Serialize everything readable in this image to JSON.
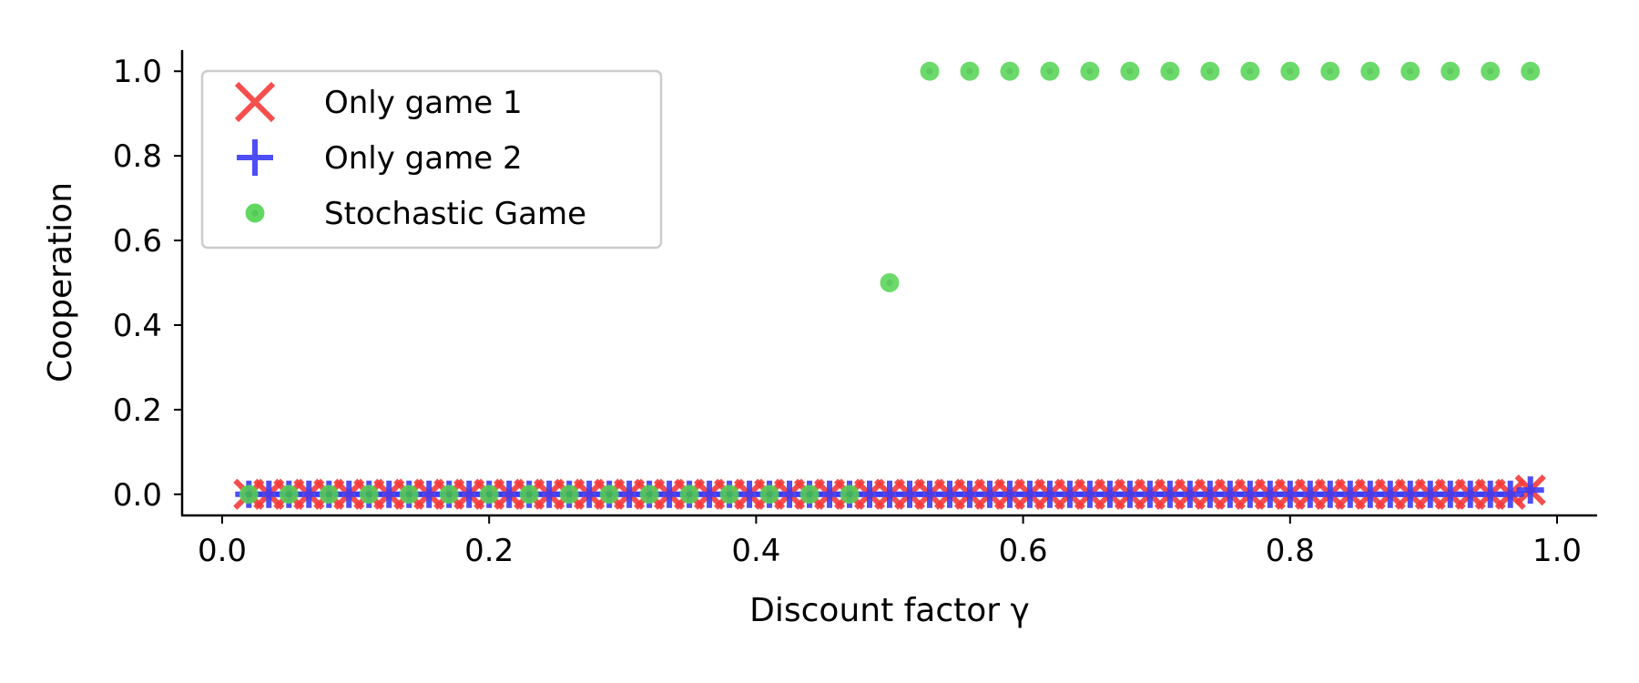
{
  "chart_data": {
    "type": "scatter",
    "xlabel": "Discount factor γ",
    "ylabel": "Cooperation",
    "xlim": [
      -0.03,
      1.03
    ],
    "ylim": [
      -0.05,
      1.05
    ],
    "xticks": [
      0.0,
      0.2,
      0.4,
      0.6,
      0.8,
      1.0
    ],
    "xtick_labels": [
      "0.0",
      "0.2",
      "0.4",
      "0.6",
      "0.8",
      "1.0"
    ],
    "yticks": [
      0.0,
      0.2,
      0.4,
      0.6,
      0.8,
      1.0
    ],
    "ytick_labels": [
      "0.0",
      "0.2",
      "0.4",
      "0.6",
      "0.8",
      "1.0"
    ],
    "grid": false,
    "legend_position": "top-left",
    "series": [
      {
        "name": "Only game 1",
        "marker": "x",
        "color": "#f53b3b",
        "x": [
          0.02,
          0.035,
          0.05,
          0.065,
          0.08,
          0.095,
          0.11,
          0.125,
          0.14,
          0.155,
          0.17,
          0.185,
          0.2,
          0.215,
          0.23,
          0.245,
          0.26,
          0.275,
          0.29,
          0.305,
          0.32,
          0.335,
          0.35,
          0.365,
          0.38,
          0.395,
          0.41,
          0.425,
          0.44,
          0.455,
          0.47,
          0.485,
          0.5,
          0.515,
          0.53,
          0.545,
          0.56,
          0.575,
          0.59,
          0.605,
          0.62,
          0.635,
          0.65,
          0.665,
          0.68,
          0.695,
          0.71,
          0.725,
          0.74,
          0.755,
          0.77,
          0.785,
          0.8,
          0.815,
          0.83,
          0.845,
          0.86,
          0.875,
          0.89,
          0.905,
          0.92,
          0.935,
          0.95,
          0.965,
          0.98
        ],
        "y": [
          0.0,
          0.0,
          0.0,
          0.0,
          0.0,
          0.0,
          0.0,
          0.0,
          0.0,
          0.0,
          0.0,
          0.0,
          0.0,
          0.0,
          0.0,
          0.0,
          0.0,
          0.0,
          0.0,
          0.0,
          0.0,
          0.0,
          0.0,
          0.0,
          0.0,
          0.0,
          0.0,
          0.0,
          0.0,
          0.0,
          0.0,
          0.0,
          0.0,
          0.0,
          0.0,
          0.0,
          0.0,
          0.0,
          0.0,
          0.0,
          0.0,
          0.0,
          0.0,
          0.0,
          0.0,
          0.0,
          0.0,
          0.0,
          0.0,
          0.0,
          0.0,
          0.0,
          0.0,
          0.0,
          0.0,
          0.0,
          0.0,
          0.0,
          0.0,
          0.0,
          0.0,
          0.0,
          0.0,
          0.0,
          0.01
        ]
      },
      {
        "name": "Only game 2",
        "marker": "+",
        "color": "#3b3bf5",
        "x": [
          0.02,
          0.035,
          0.05,
          0.065,
          0.08,
          0.095,
          0.11,
          0.125,
          0.14,
          0.155,
          0.17,
          0.185,
          0.2,
          0.215,
          0.23,
          0.245,
          0.26,
          0.275,
          0.29,
          0.305,
          0.32,
          0.335,
          0.35,
          0.365,
          0.38,
          0.395,
          0.41,
          0.425,
          0.44,
          0.455,
          0.47,
          0.485,
          0.5,
          0.515,
          0.53,
          0.545,
          0.56,
          0.575,
          0.59,
          0.605,
          0.62,
          0.635,
          0.65,
          0.665,
          0.68,
          0.695,
          0.71,
          0.725,
          0.74,
          0.755,
          0.77,
          0.785,
          0.8,
          0.815,
          0.83,
          0.845,
          0.86,
          0.875,
          0.89,
          0.905,
          0.92,
          0.935,
          0.95,
          0.965,
          0.98
        ],
        "y": [
          0.0,
          0.0,
          0.0,
          0.0,
          0.0,
          0.0,
          0.0,
          0.0,
          0.0,
          0.0,
          0.0,
          0.0,
          0.0,
          0.0,
          0.0,
          0.0,
          0.0,
          0.0,
          0.0,
          0.0,
          0.0,
          0.0,
          0.0,
          0.0,
          0.0,
          0.0,
          0.0,
          0.0,
          0.0,
          0.0,
          0.0,
          0.0,
          0.0,
          0.0,
          0.0,
          0.0,
          0.0,
          0.0,
          0.0,
          0.0,
          0.0,
          0.0,
          0.0,
          0.0,
          0.0,
          0.0,
          0.0,
          0.0,
          0.0,
          0.0,
          0.0,
          0.0,
          0.0,
          0.0,
          0.0,
          0.0,
          0.0,
          0.0,
          0.0,
          0.0,
          0.0,
          0.0,
          0.0,
          0.0,
          0.01
        ]
      },
      {
        "name": "Stochastic Game",
        "marker": "o",
        "color": "#52d452",
        "x": [
          0.02,
          0.05,
          0.08,
          0.11,
          0.14,
          0.17,
          0.2,
          0.23,
          0.26,
          0.29,
          0.32,
          0.35,
          0.38,
          0.41,
          0.44,
          0.47,
          0.5,
          0.53,
          0.56,
          0.59,
          0.62,
          0.65,
          0.68,
          0.71,
          0.74,
          0.77,
          0.8,
          0.83,
          0.86,
          0.89,
          0.92,
          0.95,
          0.98
        ],
        "y": [
          0.0,
          0.0,
          0.0,
          0.0,
          0.0,
          0.0,
          0.0,
          0.0,
          0.0,
          0.0,
          0.0,
          0.0,
          0.0,
          0.0,
          0.0,
          0.0,
          0.5,
          1.0,
          1.0,
          1.0,
          1.0,
          1.0,
          1.0,
          1.0,
          1.0,
          1.0,
          1.0,
          1.0,
          1.0,
          1.0,
          1.0,
          1.0,
          1.0
        ]
      }
    ]
  }
}
